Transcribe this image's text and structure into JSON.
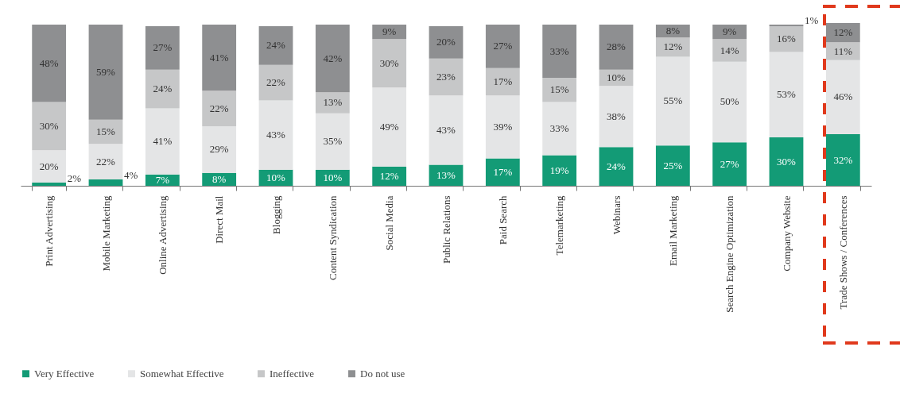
{
  "chart_data": {
    "type": "bar",
    "stacked": true,
    "legend": "bottom",
    "tick_labels": "x",
    "grid": false,
    "ylim": [
      0,
      101
    ],
    "categories": [
      "Print Advertising",
      "Mobile Marketing",
      "Online Advertising",
      "Direct Mail",
      "Blogging",
      "Content Syndication",
      "Social Media",
      "Public Relations",
      "Paid Search",
      "Telemarketing",
      "Webinars",
      "Email Marketing",
      "Search Engine Optimization",
      "Company Website",
      "Trade Shows / Conferences"
    ],
    "series": [
      {
        "name": "Very Effective",
        "color": "#139b76",
        "values": [
          2,
          4,
          7,
          8,
          10,
          10,
          12,
          13,
          17,
          19,
          24,
          25,
          27,
          30,
          32
        ],
        "value_labels": [
          "2%",
          "4%",
          "7%",
          "8%",
          "10%",
          "10%",
          "12%",
          "13%",
          "17%",
          "19%",
          "24%",
          "25%",
          "27%",
          "30%",
          "32%"
        ]
      },
      {
        "name": "Somewhat Effective",
        "color": "#e4e5e6",
        "values": [
          20,
          22,
          41,
          29,
          43,
          35,
          49,
          43,
          39,
          33,
          38,
          55,
          50,
          53,
          46
        ],
        "value_labels": [
          "20%",
          "22%",
          "41%",
          "29%",
          "43%",
          "35%",
          "49%",
          "43%",
          "39%",
          "33%",
          "38%",
          "55%",
          "50%",
          "53%",
          "46%"
        ]
      },
      {
        "name": "Ineffective",
        "color": "#c6c7c8",
        "values": [
          30,
          15,
          24,
          22,
          22,
          13,
          30,
          23,
          17,
          15,
          10,
          12,
          14,
          16,
          11
        ],
        "value_labels": [
          "30%",
          "15%",
          "24%",
          "22%",
          "22%",
          "13%",
          "30%",
          "23%",
          "17%",
          "15%",
          "10%",
          "12%",
          "14%",
          "16%",
          "11%"
        ]
      },
      {
        "name": "Do not use",
        "color": "#8e8f91",
        "values": [
          48,
          59,
          27,
          41,
          24,
          42,
          9,
          20,
          27,
          33,
          28,
          8,
          9,
          1,
          12
        ],
        "value_labels": [
          "48%",
          "59%",
          "27%",
          "41%",
          "24%",
          "42%",
          "9%",
          "20%",
          "27%",
          "33%",
          "28%",
          "8%",
          "9%",
          "1%",
          "12%"
        ]
      }
    ]
  }
}
